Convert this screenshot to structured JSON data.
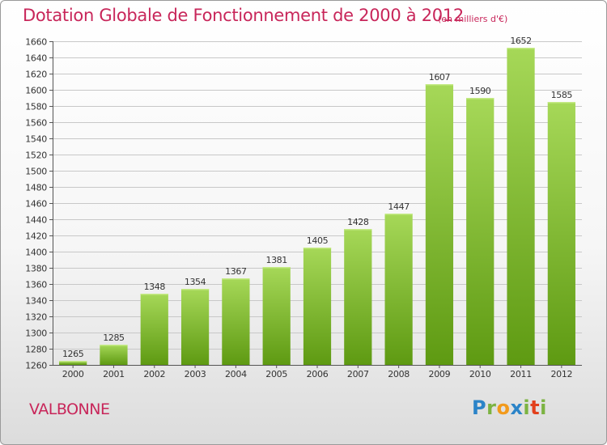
{
  "title": "Dotation Globale de Fonctionnement de 2000 à 2012",
  "unit_label": "(en milliers d'€)",
  "place": "VALBONNE",
  "logo_text": "Proxiti",
  "colors": {
    "title": "#c8265a",
    "bar_top": "#a6d858",
    "bar_bottom": "#5e9a12",
    "grid": "#c8c8c8"
  },
  "chart_data": {
    "type": "bar",
    "title": "Dotation Globale de Fonctionnement de 2000 à 2012",
    "subtitle": "(en milliers d'€)",
    "categories": [
      "2000",
      "2001",
      "2002",
      "2003",
      "2004",
      "2005",
      "2006",
      "2007",
      "2008",
      "2009",
      "2010",
      "2011",
      "2012"
    ],
    "values": [
      1265,
      1285,
      1348,
      1354,
      1367,
      1381,
      1405,
      1428,
      1447,
      1607,
      1590,
      1652,
      1585
    ],
    "ylim": [
      1260,
      1660
    ],
    "ytick_step": 20,
    "grid": true,
    "data_labels": true
  }
}
